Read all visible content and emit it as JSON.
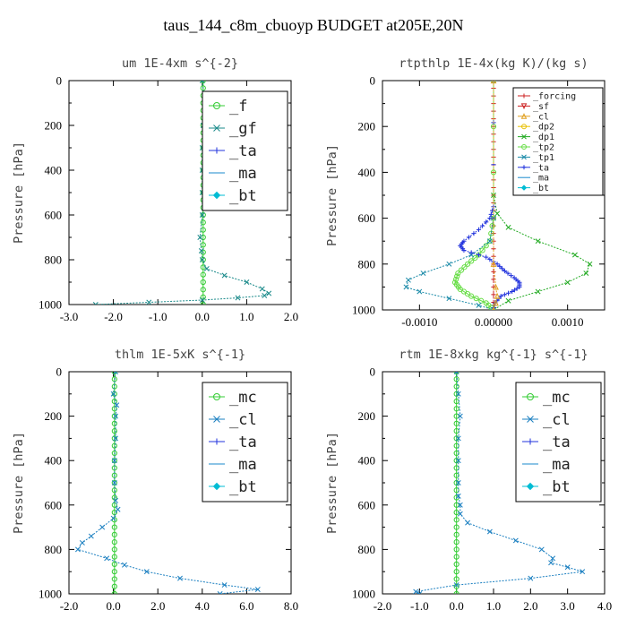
{
  "figure": {
    "title": "taus_144_c8m_cbuoyp  BUDGET at205E,20N"
  },
  "colors": {
    "f": "#33cc33",
    "gf": "#1a8a8a",
    "ta": "#2233dd",
    "ma": "#1a8acc",
    "bt": "#00bcd4",
    "forcing": "#cc2222",
    "sf": "#cc2222",
    "cl": "#1a7fc0",
    "cl_small": "#e0a020",
    "dp2": "#e8c000",
    "dp1": "#22aa22",
    "tp2": "#66dd44",
    "tp1": "#1a8aa8",
    "mc": "#33cc33"
  },
  "chart_data": [
    {
      "type": "line",
      "title": "um  1E-4xm s^{-2}",
      "ylabel": "Pressure [hPa]",
      "xlim": [
        -3.0,
        2.0
      ],
      "ylim": [
        1000,
        0
      ],
      "xticks": [
        -3.0,
        -2.0,
        -1.0,
        0.0,
        1.0,
        2.0
      ],
      "xtick_labels": [
        "-3.0",
        "-2.0",
        "-1.0",
        "0.0",
        "1.0",
        "2.0"
      ],
      "yticks": [
        0,
        200,
        400,
        600,
        800,
        1000
      ],
      "ytick_labels": [
        "0",
        "200",
        "400",
        "600",
        "800",
        "1000"
      ],
      "legend": {
        "placement": "top-right",
        "size": "large",
        "entries": [
          "_f",
          "_gf",
          "_ta",
          "_ma",
          "_bt"
        ]
      },
      "series": [
        {
          "name": "_f",
          "color_key": "f",
          "marker": "circle",
          "y": [
            0,
            100,
            200,
            300,
            400,
            500,
            600,
            700,
            800,
            900,
            1000
          ],
          "x": [
            0.02,
            0.02,
            0.02,
            0.02,
            0.02,
            0.02,
            0.02,
            0.02,
            0.02,
            0.02,
            0.02
          ]
        },
        {
          "name": "_gf",
          "color_key": "gf",
          "marker": "cross",
          "y": [
            0,
            100,
            200,
            300,
            400,
            500,
            600,
            700,
            760,
            800,
            840,
            870,
            900,
            930,
            950,
            960,
            970,
            980,
            990,
            1000
          ],
          "x": [
            0.0,
            0.05,
            0.02,
            0.0,
            0.0,
            0.0,
            0.0,
            -0.05,
            -0.02,
            0.0,
            0.1,
            0.5,
            1.0,
            1.35,
            1.5,
            1.4,
            0.8,
            0.0,
            -1.2,
            -2.4
          ]
        }
      ]
    },
    {
      "type": "line",
      "title": "rtpthlp  1E-4x(kg K)/(kg s)",
      "ylabel": "Pressure [hPa]",
      "xlim": [
        -0.0015,
        0.0015
      ],
      "ylim": [
        1000,
        0
      ],
      "xticks": [
        -0.001,
        0.0,
        0.001
      ],
      "xtick_labels": [
        "-0.0010",
        "0.00000",
        "0.0010"
      ],
      "yticks": [
        0,
        200,
        400,
        600,
        800,
        1000
      ],
      "ytick_labels": [
        "0",
        "200",
        "400",
        "600",
        "800",
        "1000"
      ],
      "legend": {
        "placement": "top-right",
        "size": "small",
        "entries": [
          "_forcing",
          "_sf",
          "_cl",
          "_dp2",
          "_dp1",
          "_tp2",
          "_tp1",
          "_ta",
          "_ma",
          "_bt"
        ]
      },
      "series": [
        {
          "name": "_forcing",
          "color_key": "forcing",
          "marker": "plus",
          "y": [
            0,
            100,
            200,
            300,
            400,
            500,
            600,
            700,
            800,
            900,
            1000
          ],
          "x": [
            0,
            0,
            0,
            0,
            0,
            0,
            0,
            0,
            0,
            0,
            0
          ]
        },
        {
          "name": "_dp1",
          "color_key": "dp1",
          "marker": "cross",
          "y": [
            0,
            500,
            580,
            640,
            700,
            760,
            800,
            840,
            880,
            920,
            960,
            1000
          ],
          "x": [
            0,
            0,
            5e-05,
            0.0002,
            0.0006,
            0.0011,
            0.0013,
            0.00125,
            0.001,
            0.0006,
            0.0002,
            0
          ]
        },
        {
          "name": "_tp2",
          "color_key": "tp2",
          "marker": "circle",
          "y": [
            0,
            600,
            700,
            760,
            800,
            840,
            880,
            910,
            940,
            970,
            1000
          ],
          "x": [
            0,
            0,
            -5e-05,
            -0.0002,
            -0.00035,
            -0.00048,
            -0.00052,
            -0.00045,
            -0.0003,
            -0.0001,
            0
          ]
        },
        {
          "name": "_tp1",
          "color_key": "tp1",
          "marker": "cross",
          "y": [
            0,
            600,
            700,
            760,
            800,
            840,
            870,
            900,
            920,
            950,
            980,
            1000
          ],
          "x": [
            0,
            0,
            -5e-05,
            -0.0003,
            -0.0006,
            -0.00095,
            -0.00115,
            -0.00118,
            -0.001,
            -0.0006,
            -0.0002,
            0
          ]
        },
        {
          "name": "_ta",
          "color_key": "ta",
          "marker": "plus",
          "y": [
            0,
            550,
            600,
            650,
            700,
            720,
            740,
            770,
            800,
            830,
            860,
            880,
            900,
            920,
            940,
            970,
            1000
          ],
          "x": [
            0,
            0,
            -5e-05,
            -0.0002,
            -0.0004,
            -0.00045,
            -0.0004,
            -0.0001,
            5e-05,
            0.00015,
            0.00028,
            0.00035,
            0.00035,
            0.00025,
            0.0001,
            2e-05,
            0
          ]
        },
        {
          "name": "_cl",
          "color_key": "cl_small",
          "marker": "triangle",
          "y": [
            0,
            800,
            900,
            940,
            970,
            1000
          ],
          "x": [
            0,
            0,
            3e-05,
            5e-05,
            3e-05,
            0
          ]
        }
      ]
    },
    {
      "type": "line",
      "title": "thlm  1E-5xK s^{-1}",
      "ylabel": "Pressure [hPa]",
      "xlim": [
        -2.0,
        8.0
      ],
      "ylim": [
        1000,
        0
      ],
      "xticks": [
        -2.0,
        0.0,
        2.0,
        4.0,
        6.0,
        8.0
      ],
      "xtick_labels": [
        "-2.0",
        "0.0",
        "2.0",
        "4.0",
        "6.0",
        "8.0"
      ],
      "yticks": [
        0,
        200,
        400,
        600,
        800,
        1000
      ],
      "ytick_labels": [
        "0",
        "200",
        "400",
        "600",
        "800",
        "1000"
      ],
      "legend": {
        "placement": "top-right",
        "size": "large",
        "entries": [
          "_mc",
          "_cl",
          "_ta",
          "_ma",
          "_bt"
        ]
      },
      "series": [
        {
          "name": "_mc",
          "color_key": "mc",
          "marker": "circle",
          "y": [
            0,
            100,
            200,
            300,
            400,
            500,
            600,
            700,
            800,
            900,
            1000
          ],
          "x": [
            0.05,
            0.05,
            0.05,
            0.05,
            0.05,
            0.05,
            0.05,
            0.05,
            0.05,
            0.05,
            0.05
          ]
        },
        {
          "name": "_cl",
          "color_key": "cl",
          "marker": "cross",
          "y": [
            0,
            100,
            150,
            200,
            300,
            400,
            500,
            580,
            620,
            660,
            700,
            740,
            770,
            800,
            840,
            870,
            900,
            930,
            960,
            980,
            1000
          ],
          "x": [
            0.1,
            0.0,
            0.15,
            0.1,
            0.1,
            0.05,
            0.05,
            0.1,
            0.2,
            0.0,
            -0.5,
            -1.0,
            -1.4,
            -1.6,
            -0.3,
            0.5,
            1.5,
            3.0,
            5.0,
            6.5,
            4.8
          ]
        }
      ]
    },
    {
      "type": "line",
      "title": "rtm  1E-8xkg kg^{-1} s^{-1}",
      "ylabel": "Pressure [hPa]",
      "xlim": [
        -2.0,
        4.0
      ],
      "ylim": [
        1000,
        0
      ],
      "xticks": [
        -2.0,
        -1.0,
        0.0,
        1.0,
        2.0,
        3.0,
        4.0
      ],
      "xtick_labels": [
        "-2.0",
        "-1.0",
        "0.0",
        "1.0",
        "2.0",
        "3.0",
        "4.0"
      ],
      "yticks": [
        0,
        200,
        400,
        600,
        800,
        1000
      ],
      "ytick_labels": [
        "0",
        "200",
        "400",
        "600",
        "800",
        "1000"
      ],
      "legend": {
        "placement": "top-right",
        "size": "large",
        "entries": [
          "_mc",
          "_cl",
          "_ta",
          "_ma",
          "_bt"
        ]
      },
      "series": [
        {
          "name": "_mc",
          "color_key": "mc",
          "marker": "circle",
          "y": [
            0,
            100,
            200,
            300,
            400,
            500,
            600,
            700,
            800,
            900,
            1000
          ],
          "x": [
            0.0,
            0.0,
            0.0,
            0.0,
            0.0,
            0.0,
            0.0,
            0.0,
            0.0,
            0.0,
            0.0
          ]
        },
        {
          "name": "_cl",
          "color_key": "cl",
          "marker": "cross",
          "y": [
            0,
            100,
            200,
            300,
            400,
            500,
            560,
            600,
            640,
            680,
            720,
            760,
            800,
            840,
            860,
            880,
            900,
            930,
            960,
            990,
            1000
          ],
          "x": [
            0.0,
            0.05,
            0.1,
            0.05,
            0.05,
            0.05,
            0.05,
            0.1,
            0.1,
            0.3,
            0.9,
            1.6,
            2.3,
            2.6,
            2.55,
            3.0,
            3.4,
            2.0,
            0.0,
            -1.1,
            -1.0
          ]
        }
      ]
    }
  ]
}
